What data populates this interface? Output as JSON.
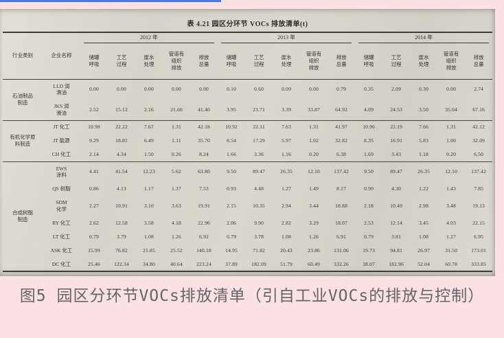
{
  "page": {
    "accent_color": "#4479f2",
    "background_color": "#fbe1e3"
  },
  "table": {
    "title": "表 4.21  园区分环节 VOCs 排放清单(t)",
    "col_headers": [
      "行业类别",
      "企业名称"
    ],
    "years": [
      "2012 年",
      "2013 年",
      "2014 年"
    ],
    "sub_headers": [
      "储罐\n呼吸",
      "工艺\n过程",
      "废水\n处理",
      "管道有\n组织\n排放",
      "排放\n总量"
    ],
    "groups": [
      {
        "category": "石油制品\n制造",
        "rows": [
          {
            "name": "LLD 润\n滑油",
            "values": [
              "0.00",
              "0.00",
              "0.00",
              "0.00",
              "0.00",
              "0.10",
              "0.60",
              "0.09",
              "0.00",
              "0.79",
              "0.35",
              "2.09",
              "0.30",
              "0.00",
              "2.74"
            ]
          },
          {
            "name": "JKS 润\n滑油",
            "values": [
              "2.52",
              "15.12",
              "2.16",
              "21.60",
              "41.40",
              "3.95",
              "23.71",
              "3.39",
              "33.87",
              "64.92",
              "4.09",
              "24.53",
              "3.50",
              "35.04",
              "67.16"
            ]
          }
        ]
      },
      {
        "category": "有机化学原\n料制造",
        "rows": [
          {
            "name": "JT 化工",
            "values": [
              "10.98",
              "22.22",
              "7.67",
              "1.31",
              "42.18",
              "10.92",
              "22.11",
              "7.63",
              "1.31",
              "41.97",
              "10.96",
              "22.19",
              "7.66",
              "1.31",
              "42.12"
            ]
          },
          {
            "name": "JT 能源",
            "values": [
              "9.29",
              "18.81",
              "6.49",
              "1.11",
              "35.70",
              "8.54",
              "17.29",
              "5.97",
              "1.02",
              "32.82",
              "8.35",
              "16.91",
              "5.83",
              "1.00",
              "32.09"
            ]
          },
          {
            "name": "CH 化工",
            "values": [
              "2.14",
              "4.34",
              "1.50",
              "0.26",
              "8.24",
              "1.66",
              "3.36",
              "1.16",
              "0.20",
              "6.38",
              "1.69",
              "3.43",
              "1.18",
              "0.20",
              "6.50"
            ]
          }
        ]
      },
      {
        "category": "合成树脂\n制造",
        "rows": [
          {
            "name": "EWS\n涂料",
            "values": [
              "4.41",
              "41.54",
              "12.23",
              "5.62",
              "63.80",
              "9.50",
              "89.47",
              "26.35",
              "12.10",
              "137.42",
              "9.50",
              "89.47",
              "26.35",
              "12.10",
              "137.42"
            ]
          },
          {
            "name": "QS 树脂",
            "values": [
              "0.86",
              "4.13",
              "1.17",
              "1.37",
              "7.53",
              "0.93",
              "4.48",
              "1.27",
              "1.49",
              "8.17",
              "0.90",
              "4.30",
              "1.22",
              "1.43",
              "7.85"
            ]
          },
          {
            "name": "SDM\n化学",
            "values": [
              "2.27",
              "10.91",
              "3.10",
              "3.63",
              "19.91",
              "2.15",
              "10.35",
              "2.94",
              "3.44",
              "18.88",
              "2.18",
              "10.49",
              "2.98",
              "3.48",
              "19.13"
            ]
          },
          {
            "name": "RY 化工",
            "values": [
              "2.62",
              "12.58",
              "3.58",
              "4.18",
              "22.96",
              "2.06",
              "9.90",
              "2.82",
              "3.29",
              "18.07",
              "2.53",
              "12.14",
              "3.45",
              "4.03",
              "22.15"
            ]
          },
          {
            "name": "LT 化工",
            "values": [
              "0.79",
              "3.79",
              "1.08",
              "1.26",
              "6.92",
              "0.79",
              "3.78",
              "1.08",
              "1.26",
              "6.91",
              "0.79",
              "3.81",
              "1.08",
              "1.27",
              "6.95"
            ]
          },
          {
            "name": "ASK 化工",
            "values": [
              "15.99",
              "76.82",
              "21.85",
              "25.52",
              "140.18",
              "14.95",
              "71.82",
              "20.43",
              "23.86",
              "131.06",
              "19.73",
              "94.81",
              "26.97",
              "31.50",
              "173.01"
            ]
          },
          {
            "name": "DC 化工",
            "values": [
              "25.46",
              "122.34",
              "34.80",
              "40.64",
              "223.24",
              "37.89",
              "182.09",
              "51.79",
              "60.49",
              "332.26",
              "38.07",
              "182.96",
              "52.04",
              "60.78",
              "333.85"
            ]
          }
        ]
      }
    ]
  },
  "caption": "图5  园区分环节VOCs排放清单（引自工业VOCs的排放与控制）"
}
